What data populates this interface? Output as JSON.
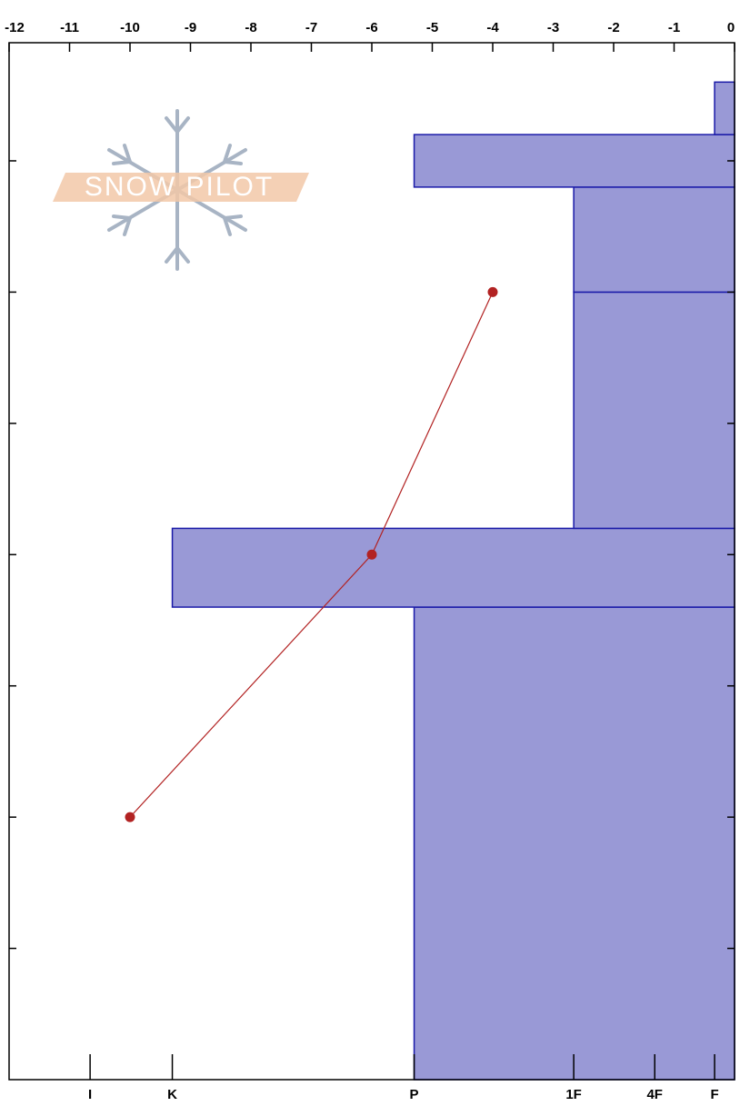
{
  "chart_data": {
    "type": "snow-profile",
    "logo": {
      "text": "SNOW PILOT"
    },
    "xlim": [
      -12,
      0
    ],
    "xticks": [
      -12,
      -11,
      -10,
      -9,
      -8,
      -7,
      -6,
      -5,
      -4,
      -3,
      -2,
      -1,
      0
    ],
    "ylim": [
      0,
      79
    ],
    "yticks": [
      10,
      20,
      30,
      40,
      50,
      60,
      70
    ],
    "hardness_ticks": [
      {
        "value": -10.66,
        "label": "I"
      },
      {
        "value": -9.3,
        "label": "K"
      },
      {
        "value": -5.3,
        "label": "P"
      },
      {
        "value": -2.66,
        "label": "1F"
      },
      {
        "value": -1.32,
        "label": "4F"
      },
      {
        "value": -0.33,
        "label": "F"
      }
    ],
    "layers": {
      "color": "#9999d6",
      "edge_color": "#1a1aa8",
      "bottom": [
        0,
        36,
        42,
        60,
        68,
        72
      ],
      "top": [
        36,
        42,
        60,
        68,
        72,
        76
      ],
      "hardness": [
        -5.3,
        -9.3,
        -2.66,
        -2.66,
        -5.3,
        -0.33
      ]
    },
    "temperature": {
      "color": "#b22222",
      "height": [
        60,
        40,
        20
      ],
      "values": [
        -4,
        -6,
        -10
      ]
    }
  }
}
